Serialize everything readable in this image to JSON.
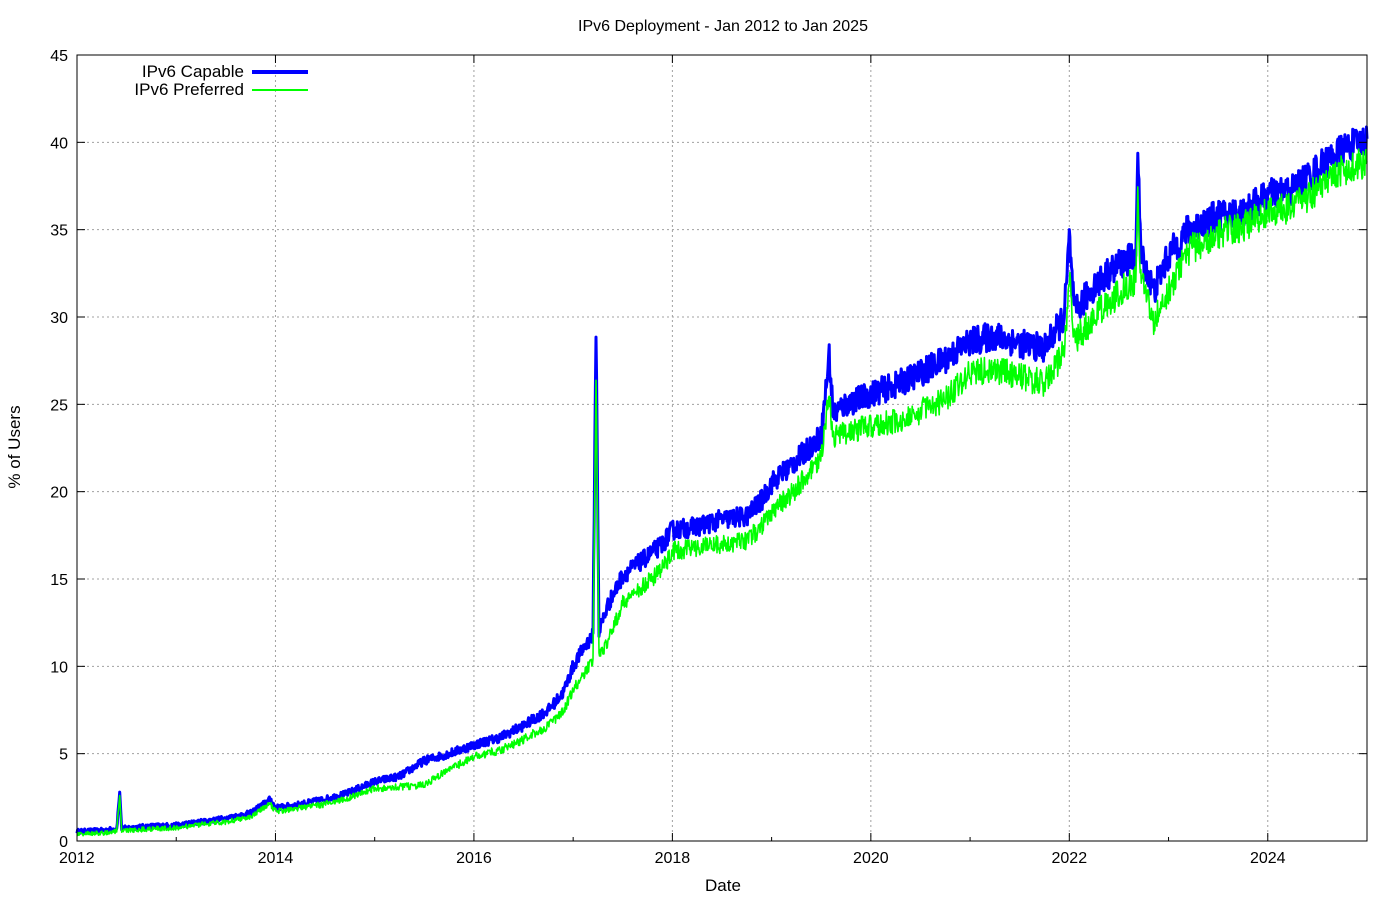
{
  "chart_data": {
    "type": "line",
    "title": "IPv6 Deployment - Jan 2012 to Jan 2025",
    "xlabel": "Date",
    "ylabel": "% of Users",
    "xlim": [
      2012.0,
      2025.0
    ],
    "ylim": [
      0,
      45
    ],
    "x_ticks": [
      "2012",
      "2014",
      "2016",
      "2018",
      "2020",
      "2022",
      "2024"
    ],
    "y_ticks": [
      "0",
      "5",
      "10",
      "15",
      "20",
      "25",
      "30",
      "35",
      "40",
      "45"
    ],
    "grid": true,
    "legend_position": "top-left",
    "series": [
      {
        "name": "IPv6 Capable",
        "color": "#0000ff",
        "points": [
          [
            2012.0,
            0.55
          ],
          [
            2012.25,
            0.6
          ],
          [
            2012.4,
            0.7
          ],
          [
            2012.43,
            2.8
          ],
          [
            2012.45,
            0.7
          ],
          [
            2012.5,
            0.75
          ],
          [
            2012.75,
            0.85
          ],
          [
            2013.0,
            0.9
          ],
          [
            2013.25,
            1.1
          ],
          [
            2013.5,
            1.3
          ],
          [
            2013.75,
            1.6
          ],
          [
            2013.95,
            2.4
          ],
          [
            2014.0,
            1.9
          ],
          [
            2014.25,
            2.1
          ],
          [
            2014.5,
            2.4
          ],
          [
            2014.71,
            2.7
          ],
          [
            2014.75,
            2.8
          ],
          [
            2015.0,
            3.4
          ],
          [
            2015.25,
            3.7
          ],
          [
            2015.5,
            4.6
          ],
          [
            2015.75,
            5.0
          ],
          [
            2016.0,
            5.5
          ],
          [
            2016.25,
            5.9
          ],
          [
            2016.5,
            6.6
          ],
          [
            2016.75,
            7.5
          ],
          [
            2016.9,
            8.5
          ],
          [
            2017.0,
            10.0
          ],
          [
            2017.1,
            11.0
          ],
          [
            2017.2,
            11.8
          ],
          [
            2017.23,
            29.5
          ],
          [
            2017.26,
            12.0
          ],
          [
            2017.35,
            13.5
          ],
          [
            2017.5,
            15.2
          ],
          [
            2017.75,
            16.3
          ],
          [
            2017.9,
            17.0
          ],
          [
            2018.0,
            17.8
          ],
          [
            2018.25,
            18.0
          ],
          [
            2018.5,
            18.4
          ],
          [
            2018.75,
            18.6
          ],
          [
            2018.9,
            19.5
          ],
          [
            2019.0,
            20.5
          ],
          [
            2019.25,
            21.8
          ],
          [
            2019.5,
            23.2
          ],
          [
            2019.58,
            27.8
          ],
          [
            2019.62,
            24.5
          ],
          [
            2019.75,
            25.0
          ],
          [
            2020.0,
            25.6
          ],
          [
            2020.25,
            26.1
          ],
          [
            2020.5,
            26.8
          ],
          [
            2020.75,
            27.6
          ],
          [
            2021.0,
            28.6
          ],
          [
            2021.25,
            28.9
          ],
          [
            2021.5,
            28.5
          ],
          [
            2021.75,
            28.2
          ],
          [
            2021.95,
            30.0
          ],
          [
            2022.0,
            34.5
          ],
          [
            2022.05,
            30.2
          ],
          [
            2022.25,
            31.8
          ],
          [
            2022.5,
            33.0
          ],
          [
            2022.67,
            33.5
          ],
          [
            2022.69,
            39.5
          ],
          [
            2022.72,
            33.6
          ],
          [
            2022.85,
            31.5
          ],
          [
            2023.0,
            33.5
          ],
          [
            2023.2,
            35.0
          ],
          [
            2023.5,
            35.8
          ],
          [
            2023.75,
            36.0
          ],
          [
            2024.0,
            37.0
          ],
          [
            2024.25,
            37.3
          ],
          [
            2024.5,
            38.5
          ],
          [
            2024.75,
            39.6
          ],
          [
            2025.0,
            40.2
          ]
        ]
      },
      {
        "name": "IPv6 Preferred",
        "color": "#00ff00",
        "points": [
          [
            2012.0,
            0.4
          ],
          [
            2012.25,
            0.45
          ],
          [
            2012.4,
            0.55
          ],
          [
            2012.43,
            2.6
          ],
          [
            2012.45,
            0.55
          ],
          [
            2012.5,
            0.6
          ],
          [
            2012.75,
            0.7
          ],
          [
            2013.0,
            0.75
          ],
          [
            2013.25,
            0.95
          ],
          [
            2013.5,
            1.1
          ],
          [
            2013.75,
            1.4
          ],
          [
            2013.95,
            2.1
          ],
          [
            2014.0,
            1.7
          ],
          [
            2014.25,
            1.9
          ],
          [
            2014.5,
            2.1
          ],
          [
            2014.71,
            2.4
          ],
          [
            2014.75,
            2.5
          ],
          [
            2015.0,
            3.0
          ],
          [
            2015.25,
            3.1
          ],
          [
            2015.5,
            3.2
          ],
          [
            2015.75,
            4.1
          ],
          [
            2016.0,
            4.8
          ],
          [
            2016.25,
            5.2
          ],
          [
            2016.5,
            5.8
          ],
          [
            2016.75,
            6.6
          ],
          [
            2016.9,
            7.4
          ],
          [
            2017.0,
            8.6
          ],
          [
            2017.1,
            9.5
          ],
          [
            2017.2,
            10.3
          ],
          [
            2017.23,
            27.0
          ],
          [
            2017.26,
            10.5
          ],
          [
            2017.35,
            11.5
          ],
          [
            2017.5,
            13.6
          ],
          [
            2017.75,
            14.8
          ],
          [
            2017.9,
            15.6
          ],
          [
            2018.0,
            16.6
          ],
          [
            2018.25,
            16.8
          ],
          [
            2018.5,
            17.0
          ],
          [
            2018.75,
            17.2
          ],
          [
            2018.9,
            18.0
          ],
          [
            2019.0,
            18.8
          ],
          [
            2019.25,
            20.2
          ],
          [
            2019.5,
            21.8
          ],
          [
            2019.58,
            26.0
          ],
          [
            2019.62,
            23.0
          ],
          [
            2019.75,
            23.4
          ],
          [
            2020.0,
            23.8
          ],
          [
            2020.25,
            24.0
          ],
          [
            2020.5,
            24.6
          ],
          [
            2020.75,
            25.3
          ],
          [
            2021.0,
            26.8
          ],
          [
            2021.25,
            27.0
          ],
          [
            2021.5,
            26.6
          ],
          [
            2021.75,
            26.2
          ],
          [
            2021.95,
            28.0
          ],
          [
            2022.0,
            32.5
          ],
          [
            2022.05,
            28.6
          ],
          [
            2022.25,
            30.0
          ],
          [
            2022.5,
            31.4
          ],
          [
            2022.67,
            32.0
          ],
          [
            2022.69,
            37.0
          ],
          [
            2022.72,
            32.0
          ],
          [
            2022.85,
            29.8
          ],
          [
            2023.0,
            31.6
          ],
          [
            2023.2,
            33.8
          ],
          [
            2023.5,
            34.8
          ],
          [
            2023.75,
            35.2
          ],
          [
            2024.0,
            36.0
          ],
          [
            2024.25,
            36.3
          ],
          [
            2024.5,
            37.3
          ],
          [
            2024.75,
            38.4
          ],
          [
            2025.0,
            38.9
          ]
        ]
      }
    ]
  }
}
